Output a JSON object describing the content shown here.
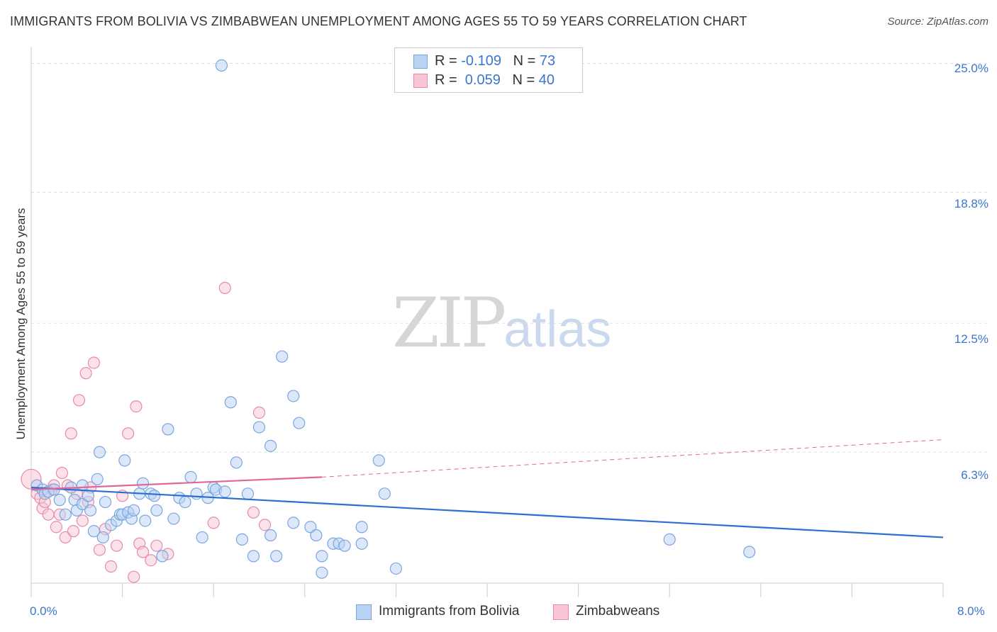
{
  "header": {
    "title": "IMMIGRANTS FROM BOLIVIA VS ZIMBABWEAN UNEMPLOYMENT AMONG AGES 55 TO 59 YEARS CORRELATION CHART",
    "source": "Source: ZipAtlas.com"
  },
  "watermark": {
    "zip": "ZIP",
    "atlas": "atlas"
  },
  "legend_top": {
    "rows": [
      {
        "r_label": "R = ",
        "r_value": "-0.109",
        "n_label": "N = ",
        "n_value": "73"
      },
      {
        "r_label": "R = ",
        "r_value": " 0.059",
        "n_label": "N = ",
        "n_value": "40"
      }
    ]
  },
  "legend_bottom": {
    "series1": "Immigrants from Bolivia",
    "series2": "Zimbabweans"
  },
  "axis": {
    "y_ticks": [
      "25.0%",
      "18.8%",
      "12.5%",
      "6.3%"
    ],
    "x_min_label": "0.0%",
    "x_max_label": "8.0%",
    "ylabel": "Unemployment Among Ages 55 to 59 years"
  },
  "colors": {
    "blue_fill": "#b9d2f3",
    "blue_stroke": "#7aa6df",
    "blue_line": "#2b6fcf",
    "pink_fill": "#f8c6d6",
    "pink_stroke": "#e88aa9",
    "pink_line": "#e0679a",
    "tick_text": "#3a76cf",
    "grid": "#dddddd"
  },
  "chart_data": {
    "type": "scatter",
    "title": "IMMIGRANTS FROM BOLIVIA VS ZIMBABWEAN UNEMPLOYMENT AMONG AGES 55 TO 59 YEARS CORRELATION CHART",
    "xlabel": "",
    "ylabel": "Unemployment Among Ages 55 to 59 years",
    "xlim": [
      0,
      8
    ],
    "ylim": [
      0,
      25.8
    ],
    "y_ticks": [
      6.3,
      12.5,
      18.8,
      25.0
    ],
    "grid": true,
    "legend_position": "top-center",
    "series": [
      {
        "name": "Immigrants from Bolivia",
        "R": -0.109,
        "N": 73,
        "trend": {
          "x": [
            0,
            8
          ],
          "y": [
            4.6,
            2.2
          ]
        },
        "points": [
          [
            0.05,
            4.7
          ],
          [
            0.1,
            4.5
          ],
          [
            0.12,
            4.3
          ],
          [
            0.15,
            4.4
          ],
          [
            0.2,
            4.5
          ],
          [
            0.25,
            4.0
          ],
          [
            0.3,
            3.3
          ],
          [
            0.35,
            4.6
          ],
          [
            0.38,
            4.0
          ],
          [
            0.4,
            3.5
          ],
          [
            0.45,
            3.8
          ],
          [
            0.45,
            4.7
          ],
          [
            0.5,
            4.2
          ],
          [
            0.52,
            3.5
          ],
          [
            0.55,
            2.5
          ],
          [
            0.58,
            5.0
          ],
          [
            0.6,
            6.3
          ],
          [
            0.63,
            2.2
          ],
          [
            0.65,
            3.9
          ],
          [
            0.7,
            2.8
          ],
          [
            0.75,
            3.0
          ],
          [
            0.78,
            3.3
          ],
          [
            0.8,
            3.3
          ],
          [
            0.82,
            5.9
          ],
          [
            0.85,
            3.4
          ],
          [
            0.88,
            3.1
          ],
          [
            0.9,
            3.5
          ],
          [
            0.95,
            4.3
          ],
          [
            0.98,
            4.8
          ],
          [
            1.0,
            3.0
          ],
          [
            1.05,
            4.3
          ],
          [
            1.08,
            4.2
          ],
          [
            1.1,
            3.5
          ],
          [
            1.15,
            1.3
          ],
          [
            1.2,
            7.4
          ],
          [
            1.25,
            3.1
          ],
          [
            1.3,
            4.1
          ],
          [
            1.35,
            3.9
          ],
          [
            1.4,
            5.1
          ],
          [
            1.45,
            4.3
          ],
          [
            1.5,
            2.2
          ],
          [
            1.55,
            4.1
          ],
          [
            1.6,
            4.6
          ],
          [
            1.62,
            4.5
          ],
          [
            1.7,
            4.4
          ],
          [
            1.75,
            8.7
          ],
          [
            1.8,
            5.8
          ],
          [
            1.85,
            2.1
          ],
          [
            1.9,
            4.3
          ],
          [
            1.95,
            1.3
          ],
          [
            2.0,
            7.5
          ],
          [
            2.1,
            2.3
          ],
          [
            2.1,
            6.6
          ],
          [
            2.15,
            1.3
          ],
          [
            2.2,
            10.9
          ],
          [
            2.3,
            2.9
          ],
          [
            2.3,
            9.0
          ],
          [
            2.35,
            7.7
          ],
          [
            2.45,
            2.7
          ],
          [
            2.5,
            2.3
          ],
          [
            2.55,
            1.3
          ],
          [
            2.55,
            0.5
          ],
          [
            2.65,
            1.9
          ],
          [
            2.7,
            1.9
          ],
          [
            2.75,
            1.8
          ],
          [
            2.9,
            1.9
          ],
          [
            2.9,
            2.7
          ],
          [
            3.05,
            5.9
          ],
          [
            3.1,
            4.3
          ],
          [
            3.2,
            0.7
          ],
          [
            5.6,
            2.1
          ],
          [
            6.3,
            1.5
          ],
          [
            1.67,
            24.9
          ]
        ]
      },
      {
        "name": "Zimbabweans",
        "R": 0.059,
        "N": 40,
        "trend": {
          "x": [
            0,
            2.55
          ],
          "y": [
            4.5,
            5.1
          ],
          "dashed_extension": {
            "x": [
              2.55,
              8
            ],
            "y": [
              5.1,
              6.9
            ]
          }
        },
        "points": [
          [
            0.05,
            4.3
          ],
          [
            0.08,
            4.1
          ],
          [
            0.1,
            3.6
          ],
          [
            0.12,
            3.9
          ],
          [
            0.15,
            3.3
          ],
          [
            0.18,
            4.5
          ],
          [
            0.2,
            4.7
          ],
          [
            0.22,
            2.7
          ],
          [
            0.25,
            3.3
          ],
          [
            0.27,
            5.3
          ],
          [
            0.3,
            2.2
          ],
          [
            0.32,
            4.7
          ],
          [
            0.35,
            7.2
          ],
          [
            0.37,
            2.5
          ],
          [
            0.4,
            4.3
          ],
          [
            0.42,
            8.8
          ],
          [
            0.45,
            3.0
          ],
          [
            0.48,
            10.1
          ],
          [
            0.5,
            3.9
          ],
          [
            0.52,
            4.6
          ],
          [
            0.55,
            10.6
          ],
          [
            0.6,
            1.6
          ],
          [
            0.65,
            2.6
          ],
          [
            0.7,
            0.8
          ],
          [
            0.75,
            1.8
          ],
          [
            0.8,
            4.2
          ],
          [
            0.85,
            7.2
          ],
          [
            0.9,
            0.3
          ],
          [
            0.92,
            8.5
          ],
          [
            0.95,
            1.9
          ],
          [
            0.98,
            1.5
          ],
          [
            1.05,
            1.1
          ],
          [
            1.1,
            1.8
          ],
          [
            1.2,
            1.4
          ],
          [
            1.6,
            2.9
          ],
          [
            1.7,
            14.2
          ],
          [
            1.95,
            3.4
          ],
          [
            2.0,
            8.2
          ],
          [
            2.05,
            2.8
          ],
          [
            0.0,
            5.0
          ]
        ]
      }
    ]
  }
}
